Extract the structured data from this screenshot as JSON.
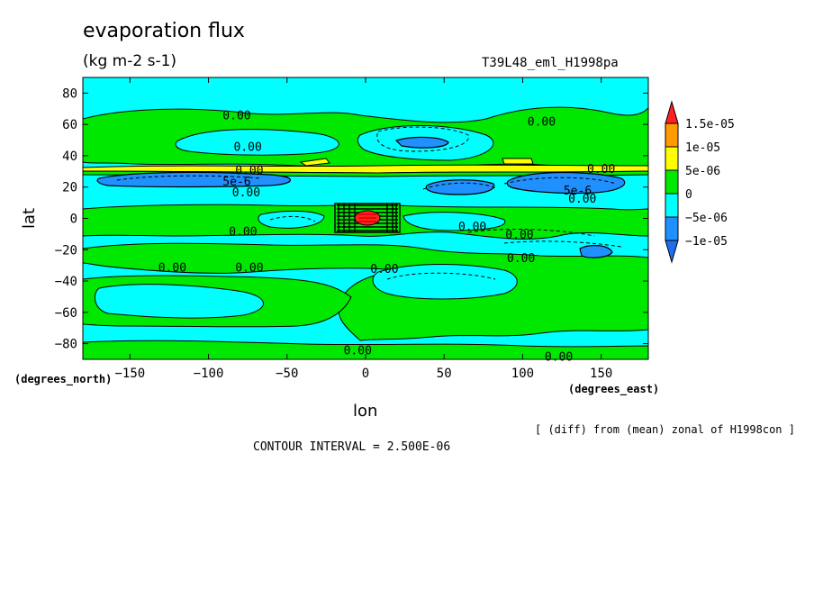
{
  "chart_data": {
    "type": "heatmap",
    "title": "evaporation flux",
    "subtitle": "(kg m-2 s-1)",
    "run_label": "T39L48_eml_H1998pa",
    "xlabel": "lon",
    "ylabel": "lat",
    "x_unit_label": "(degrees_east)",
    "y_unit_label": "(degrees_north)",
    "xlim": [
      -180,
      180
    ],
    "ylim": [
      -90,
      90
    ],
    "x_ticks": [
      -150,
      -100,
      -50,
      0,
      50,
      100,
      150
    ],
    "y_ticks": [
      -80,
      -60,
      -40,
      -20,
      0,
      20,
      40,
      60,
      80
    ],
    "colorbar": {
      "labels": [
        "1.5e-05",
        "1e-05",
        "5e-06",
        "0",
        "-5e-06",
        "-1e-05"
      ],
      "colors": [
        "#ff2020",
        "#ff9a00",
        "#ffff00",
        "#00e800",
        "#00ffff",
        "#2090ff",
        "#1e6ff0"
      ]
    },
    "contour_labels": [
      {
        "text": "0.00",
        "lon": -82,
        "lat": 66
      },
      {
        "text": "0.00",
        "lon": 112,
        "lat": 62
      },
      {
        "text": "0.00",
        "lon": -75,
        "lat": 46
      },
      {
        "text": "0.00",
        "lon": -74,
        "lat": 31
      },
      {
        "text": "0.00",
        "lon": 150,
        "lat": 32
      },
      {
        "text": "5e-6",
        "lon": -82,
        "lat": 24
      },
      {
        "text": "5e-6",
        "lon": 135,
        "lat": 18
      },
      {
        "text": "0.00",
        "lon": -76,
        "lat": 17
      },
      {
        "text": "0.00",
        "lon": 138,
        "lat": 13
      },
      {
        "text": "0.00",
        "lon": -78,
        "lat": -8
      },
      {
        "text": "0.00",
        "lon": 68,
        "lat": -5
      },
      {
        "text": "0.00",
        "lon": 98,
        "lat": -10
      },
      {
        "text": "0.00",
        "lon": 99,
        "lat": -25
      },
      {
        "text": "0.00",
        "lon": -123,
        "lat": -31
      },
      {
        "text": "0.00",
        "lon": -74,
        "lat": -31
      },
      {
        "text": "0.00",
        "lon": 12,
        "lat": -32
      },
      {
        "text": "0.00",
        "lon": -5,
        "lat": -84
      },
      {
        "text": "0.00",
        "lon": 123,
        "lat": -88
      }
    ],
    "contour_interval_text": "CONTOUR INTERVAL = 2.500E-06",
    "note": "[ (diff) from (mean) zonal of H1998con ]",
    "grid": false
  }
}
